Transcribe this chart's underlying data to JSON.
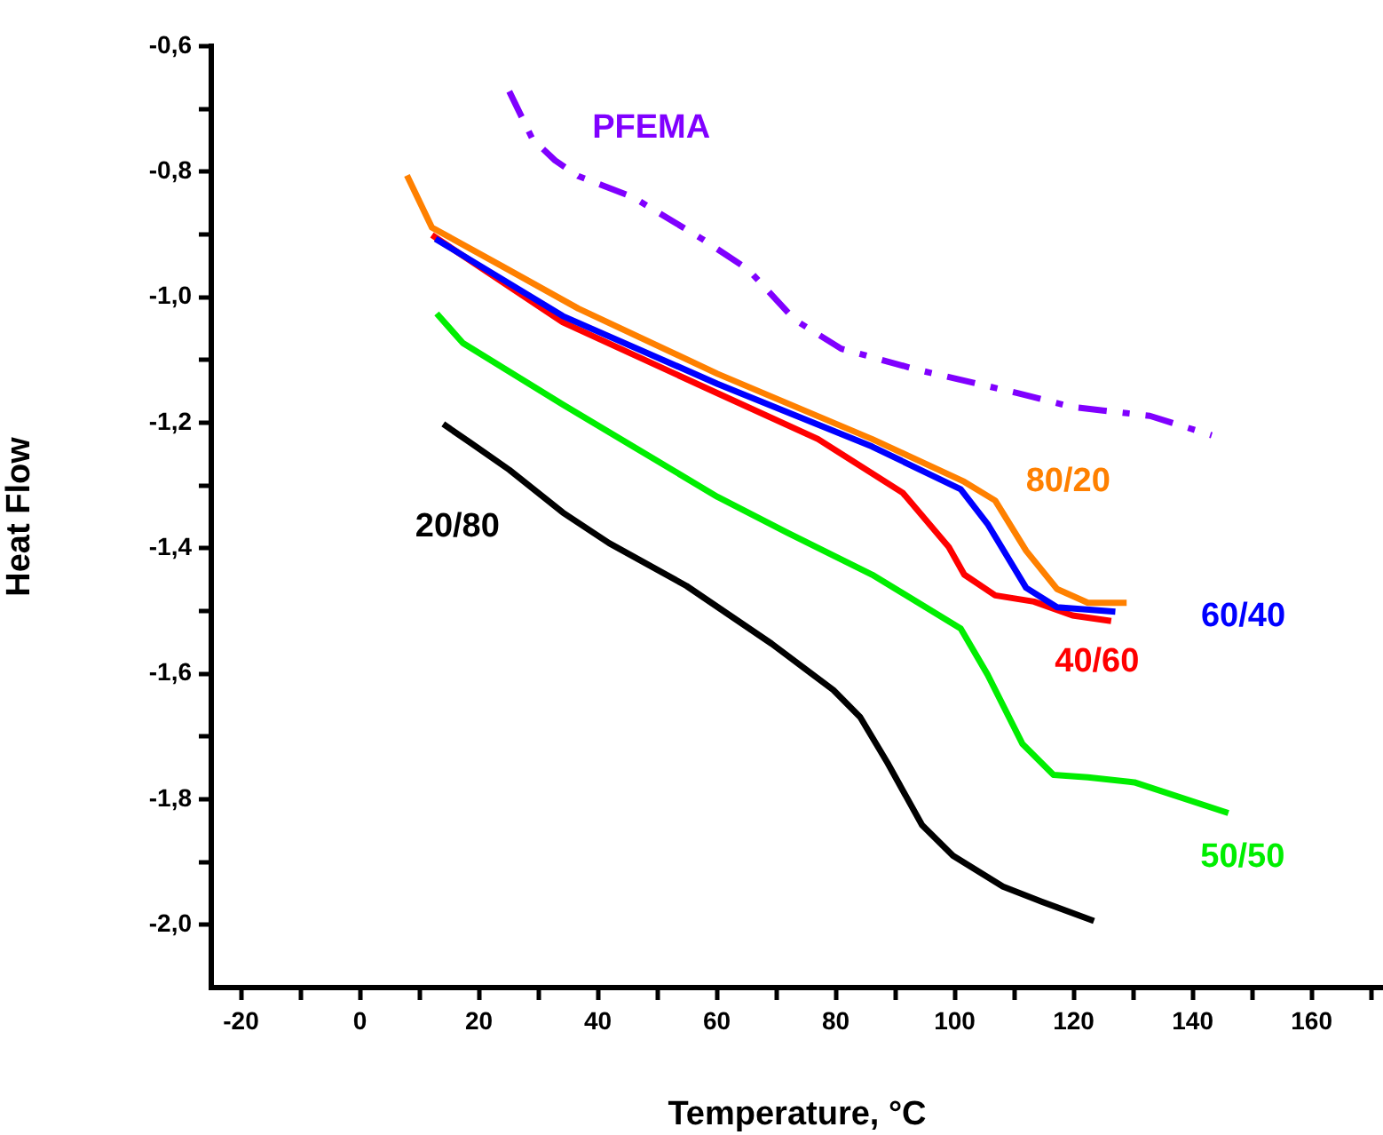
{
  "chart_data": {
    "type": "line",
    "xlabel": "Temperature, °C",
    "ylabel": "Heat Flow",
    "xlim": [
      -25,
      172
    ],
    "ylim": [
      -2.1,
      -0.6
    ],
    "xticks": [
      -20,
      {
        "value": -10,
        "label": null
      },
      0,
      {
        "value": 10,
        "label": null
      },
      20,
      {
        "value": 30,
        "label": null
      },
      40,
      {
        "value": 50,
        "label": null
      },
      60,
      {
        "value": 70,
        "label": null
      },
      80,
      {
        "value": 90,
        "label": null
      },
      100,
      {
        "value": 110,
        "label": null
      },
      120,
      {
        "value": 130,
        "label": null
      },
      140,
      {
        "value": 150,
        "label": null
      },
      160,
      {
        "value": 170,
        "label": null
      }
    ],
    "yticks": [
      {
        "value": -0.6,
        "label": "-0,6"
      },
      {
        "value": -0.7,
        "label": null
      },
      {
        "value": -0.8,
        "label": "-0,8"
      },
      {
        "value": -0.9,
        "label": null
      },
      {
        "value": -1.0,
        "label": "-1,0"
      },
      {
        "value": -1.1,
        "label": null
      },
      {
        "value": -1.2,
        "label": "-1,2"
      },
      {
        "value": -1.3,
        "label": null
      },
      {
        "value": -1.4,
        "label": "-1,4"
      },
      {
        "value": -1.5,
        "label": null
      },
      {
        "value": -1.6,
        "label": "-1,6"
      },
      {
        "value": -1.7,
        "label": null
      },
      {
        "value": -1.8,
        "label": "-1,8"
      },
      {
        "value": -1.9,
        "label": null
      },
      {
        "value": -2.0,
        "label": "-2,0"
      }
    ],
    "grid": false,
    "legend": false,
    "marker": "none",
    "line_style": "solid",
    "series": [
      {
        "name": "PFEMA",
        "color": "#8000ff",
        "line_style": "dashed",
        "x": [
          25.1,
          29.0,
          32.8,
          36.7,
          45.8,
          57.5,
          65.3,
          73.1,
          80.9,
          93.9,
          110.7,
          119.8,
          132.8,
          143.2
        ],
        "values": [
          -0.672,
          -0.748,
          -0.782,
          -0.807,
          -0.84,
          -0.907,
          -0.956,
          -1.036,
          -1.082,
          -1.116,
          -1.153,
          -1.175,
          -1.189,
          -1.22
        ]
      },
      {
        "name": "20/80",
        "color": "#000000",
        "x": [
          14.0,
          18.6,
          25.1,
          34.1,
          41.9,
          54.9,
          69.2,
          79.6,
          84.1,
          88.7,
          94.5,
          99.7,
          108.1,
          114.6,
          123.4
        ],
        "values": [
          -1.202,
          -1.232,
          -1.275,
          -1.343,
          -1.392,
          -1.46,
          -1.552,
          -1.626,
          -1.669,
          -1.742,
          -1.841,
          -1.89,
          -1.939,
          -1.963,
          -1.994
        ]
      },
      {
        "name": "80/20",
        "color": "#ff8000",
        "x": [
          7.9,
          12.1,
          23.8,
          36.7,
          60.1,
          86.1,
          101.6,
          106.8,
          112.0,
          117.2,
          122.4,
          128.9
        ],
        "values": [
          -0.806,
          -0.889,
          -0.95,
          -1.018,
          -1.122,
          -1.226,
          -1.294,
          -1.324,
          -1.404,
          -1.465,
          -1.487,
          -1.487
        ]
      },
      {
        "name": "60/40",
        "color": "#0000ff",
        "x": [
          12.7,
          34.1,
          60.1,
          86.1,
          101.0,
          105.5,
          112.0,
          117.2,
          127.0
        ],
        "values": [
          -0.907,
          -1.03,
          -1.138,
          -1.238,
          -1.306,
          -1.361,
          -1.463,
          -1.494,
          -1.501
        ]
      },
      {
        "name": "40/60",
        "color": "#ff0000",
        "x": [
          12.1,
          34.1,
          60.1,
          77.0,
          91.3,
          99.0,
          101.6,
          106.8,
          113.3,
          119.8,
          126.3
        ],
        "values": [
          -0.901,
          -1.04,
          -1.153,
          -1.226,
          -1.312,
          -1.398,
          -1.442,
          -1.475,
          -1.485,
          -1.507,
          -1.516
        ]
      },
      {
        "name": "50/50",
        "color": "#00ee00",
        "x": [
          12.9,
          17.3,
          34.1,
          60.1,
          71.8,
          86.1,
          101.0,
          105.5,
          111.4,
          116.6,
          122.4,
          130.2,
          146.0
        ],
        "values": [
          -1.026,
          -1.073,
          -1.171,
          -1.318,
          -1.375,
          -1.442,
          -1.528,
          -1.601,
          -1.712,
          -1.761,
          -1.765,
          -1.773,
          -1.822
        ]
      }
    ]
  }
}
